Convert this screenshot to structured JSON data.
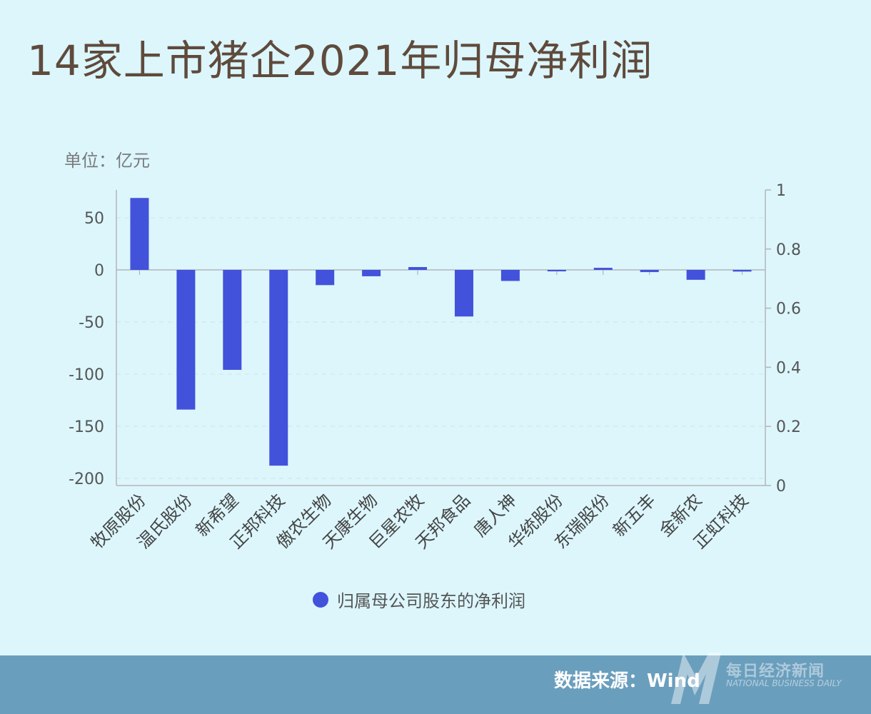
{
  "title": "14家上市猪企2021年归母净利润",
  "unit": "单位：亿元",
  "legend_label": "归属母公司股东的净利润",
  "source": "数据来源：Wind",
  "watermark": {
    "cn": "每日经济新闻",
    "en": "NATIONAL BUSINESS DAILY"
  },
  "colors": {
    "bar": "#4252db",
    "background": "#dcf6fc",
    "footer": "#6a9ebd",
    "title": "#5f4a3c"
  },
  "chart_data": {
    "type": "bar",
    "categories": [
      "牧原股份",
      "温氏股份",
      "新希望",
      "正邦科技",
      "傲农生物",
      "天康生物",
      "巨星农牧",
      "天邦食品",
      "唐人神",
      "华统股份",
      "东瑞股份",
      "新五丰",
      "金新农",
      "正虹科技"
    ],
    "series": [
      {
        "name": "归属母公司股东的净利润",
        "values": [
          69,
          -134,
          -95.9,
          -187.8,
          -14.6,
          -6.1,
          2.7,
          -44.7,
          -10.6,
          -1.4,
          2.0,
          -2.1,
          -9.5,
          -1.6
        ]
      }
    ],
    "ylabel": "单位：亿元",
    "ylim": [
      -205,
      75
    ],
    "yticks": [
      50,
      0,
      -50,
      -100,
      -150,
      -200
    ],
    "y2lim": [
      0,
      1
    ],
    "y2ticks": [
      1,
      0.8,
      0.6,
      0.4,
      0.2,
      0
    ],
    "grid": true,
    "legend_position": "bottom"
  }
}
